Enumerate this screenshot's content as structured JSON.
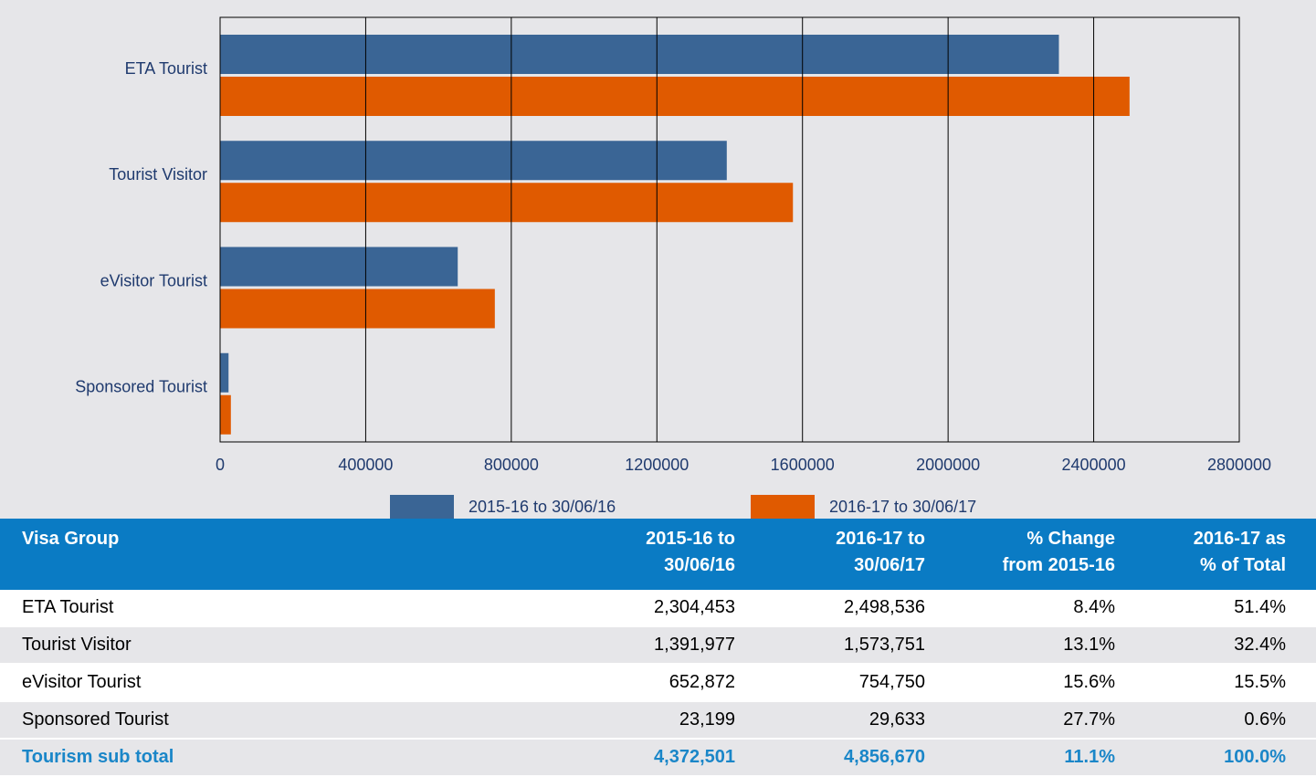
{
  "chart_data": {
    "type": "hbar",
    "categories": [
      "ETA Tourist",
      "Tourist Visitor",
      "eVisitor Tourist",
      "Sponsored Tourist"
    ],
    "series": [
      {
        "name": "2015-16 to 30/06/16",
        "color": "#3a6595",
        "values": [
          2304453,
          1391977,
          652872,
          23199
        ]
      },
      {
        "name": "2016-17 to 30/06/17",
        "color": "#e05a00",
        "values": [
          2498536,
          1573751,
          754750,
          29633
        ]
      }
    ],
    "xlim": [
      0,
      2800000
    ],
    "xticks": [
      0,
      400000,
      800000,
      1200000,
      1600000,
      2000000,
      2400000,
      2800000
    ],
    "grid": true
  },
  "table": {
    "header": [
      [
        "Visa Group"
      ],
      [
        "2015-16 to",
        "30/06/16"
      ],
      [
        "2016-17 to",
        "30/06/17"
      ],
      [
        "% Change",
        "from 2015-16"
      ],
      [
        "2016-17 as",
        "% of Total"
      ]
    ],
    "rows": [
      [
        "ETA Tourist",
        "2,304,453",
        "2,498,536",
        "8.4%",
        "51.4%"
      ],
      [
        "Tourist Visitor",
        "1,391,977",
        "1,573,751",
        "13.1%",
        "32.4%"
      ],
      [
        "eVisitor Tourist",
        "652,872",
        "754,750",
        "15.6%",
        "15.5%"
      ],
      [
        "Sponsored Tourist",
        "23,199",
        "29,633",
        "27.7%",
        "0.6%"
      ],
      [
        "Tourism sub total",
        "4,372,501",
        "4,856,670",
        "11.1%",
        "100.0%"
      ]
    ]
  }
}
